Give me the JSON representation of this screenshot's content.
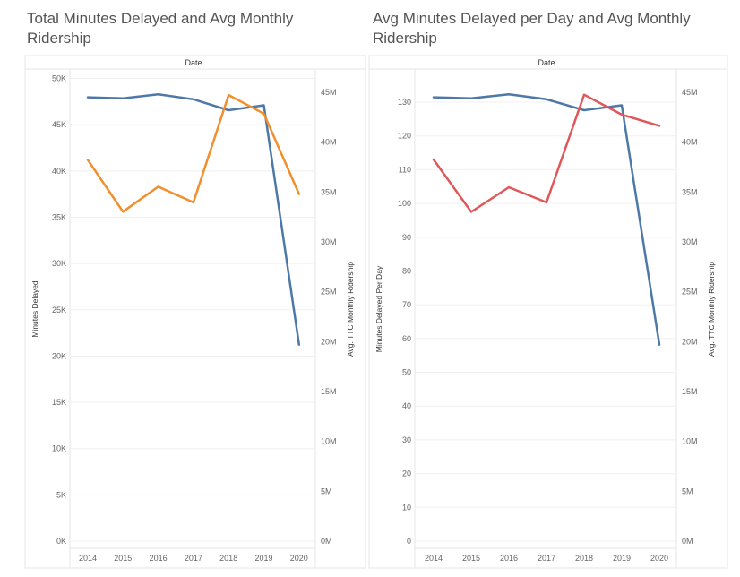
{
  "chart_data": [
    {
      "type": "line",
      "title_lines": [
        "Total Minutes Delayed and Avg Monthly",
        "Ridership"
      ],
      "header_label": "Date",
      "x": [
        "2014",
        "2015",
        "2016",
        "2017",
        "2018",
        "2019",
        "2020"
      ],
      "ylabel_left": "Minutes Delayed",
      "ylabel_right": "Avg. TTC Monthly Ridership",
      "ylim_left": [
        0,
        50000
      ],
      "ylim_right": [
        0,
        46000000
      ],
      "yticks_left": [
        {
          "value": 0,
          "label": "0K"
        },
        {
          "value": 5000,
          "label": "5K"
        },
        {
          "value": 10000,
          "label": "10K"
        },
        {
          "value": 15000,
          "label": "15K"
        },
        {
          "value": 20000,
          "label": "20K"
        },
        {
          "value": 25000,
          "label": "25K"
        },
        {
          "value": 30000,
          "label": "30K"
        },
        {
          "value": 35000,
          "label": "35K"
        },
        {
          "value": 40000,
          "label": "40K"
        },
        {
          "value": 45000,
          "label": "45K"
        },
        {
          "value": 50000,
          "label": "50K"
        }
      ],
      "yticks_right": [
        {
          "value": 0,
          "label": "0M"
        },
        {
          "value": 5000000,
          "label": "5M"
        },
        {
          "value": 10000000,
          "label": "10M"
        },
        {
          "value": 15000000,
          "label": "15M"
        },
        {
          "value": 20000000,
          "label": "20M"
        },
        {
          "value": 25000000,
          "label": "25M"
        },
        {
          "value": 30000000,
          "label": "30M"
        },
        {
          "value": 35000000,
          "label": "35M"
        },
        {
          "value": 40000000,
          "label": "40M"
        },
        {
          "value": 45000000,
          "label": "45M"
        }
      ],
      "grid": true,
      "series": [
        {
          "axis": "right",
          "color": "#4e79a7",
          "values": [
            44500000,
            44400000,
            44800000,
            44300000,
            43200000,
            43700000,
            19700000
          ]
        },
        {
          "axis": "left",
          "color": "#f28e2b",
          "values": [
            41200,
            35600,
            38300,
            36600,
            48200,
            46200,
            37500
          ]
        }
      ]
    },
    {
      "type": "line",
      "title_lines": [
        "Avg Minutes Delayed per Day and Avg Monthly",
        "Ridership"
      ],
      "header_label": "Date",
      "x": [
        "2014",
        "2015",
        "2016",
        "2017",
        "2018",
        "2019",
        "2020"
      ],
      "ylabel_left": "Minutes Delayed Per Day",
      "ylabel_right": "Avg. TTC Monthly Ridership",
      "ylim_left": [
        0,
        136
      ],
      "ylim_right": [
        0,
        46000000
      ],
      "yticks_left": [
        {
          "value": 0,
          "label": "0"
        },
        {
          "value": 10,
          "label": "10"
        },
        {
          "value": 20,
          "label": "20"
        },
        {
          "value": 30,
          "label": "30"
        },
        {
          "value": 40,
          "label": "40"
        },
        {
          "value": 50,
          "label": "50"
        },
        {
          "value": 60,
          "label": "60"
        },
        {
          "value": 70,
          "label": "70"
        },
        {
          "value": 80,
          "label": "80"
        },
        {
          "value": 90,
          "label": "90"
        },
        {
          "value": 100,
          "label": "100"
        },
        {
          "value": 110,
          "label": "110"
        },
        {
          "value": 120,
          "label": "120"
        },
        {
          "value": 130,
          "label": "130"
        }
      ],
      "yticks_right": [
        {
          "value": 0,
          "label": "0M"
        },
        {
          "value": 5000000,
          "label": "5M"
        },
        {
          "value": 10000000,
          "label": "10M"
        },
        {
          "value": 15000000,
          "label": "15M"
        },
        {
          "value": 20000000,
          "label": "20M"
        },
        {
          "value": 25000000,
          "label": "25M"
        },
        {
          "value": 30000000,
          "label": "30M"
        },
        {
          "value": 35000000,
          "label": "35M"
        },
        {
          "value": 40000000,
          "label": "40M"
        },
        {
          "value": 45000000,
          "label": "45M"
        }
      ],
      "grid": true,
      "series": [
        {
          "axis": "right",
          "color": "#4e79a7",
          "values": [
            44500000,
            44400000,
            44800000,
            44300000,
            43200000,
            43700000,
            19700000
          ]
        },
        {
          "axis": "left",
          "color": "#e15759",
          "values": [
            113,
            97.5,
            104.8,
            100.3,
            132.2,
            126.3,
            123
          ]
        }
      ]
    }
  ]
}
